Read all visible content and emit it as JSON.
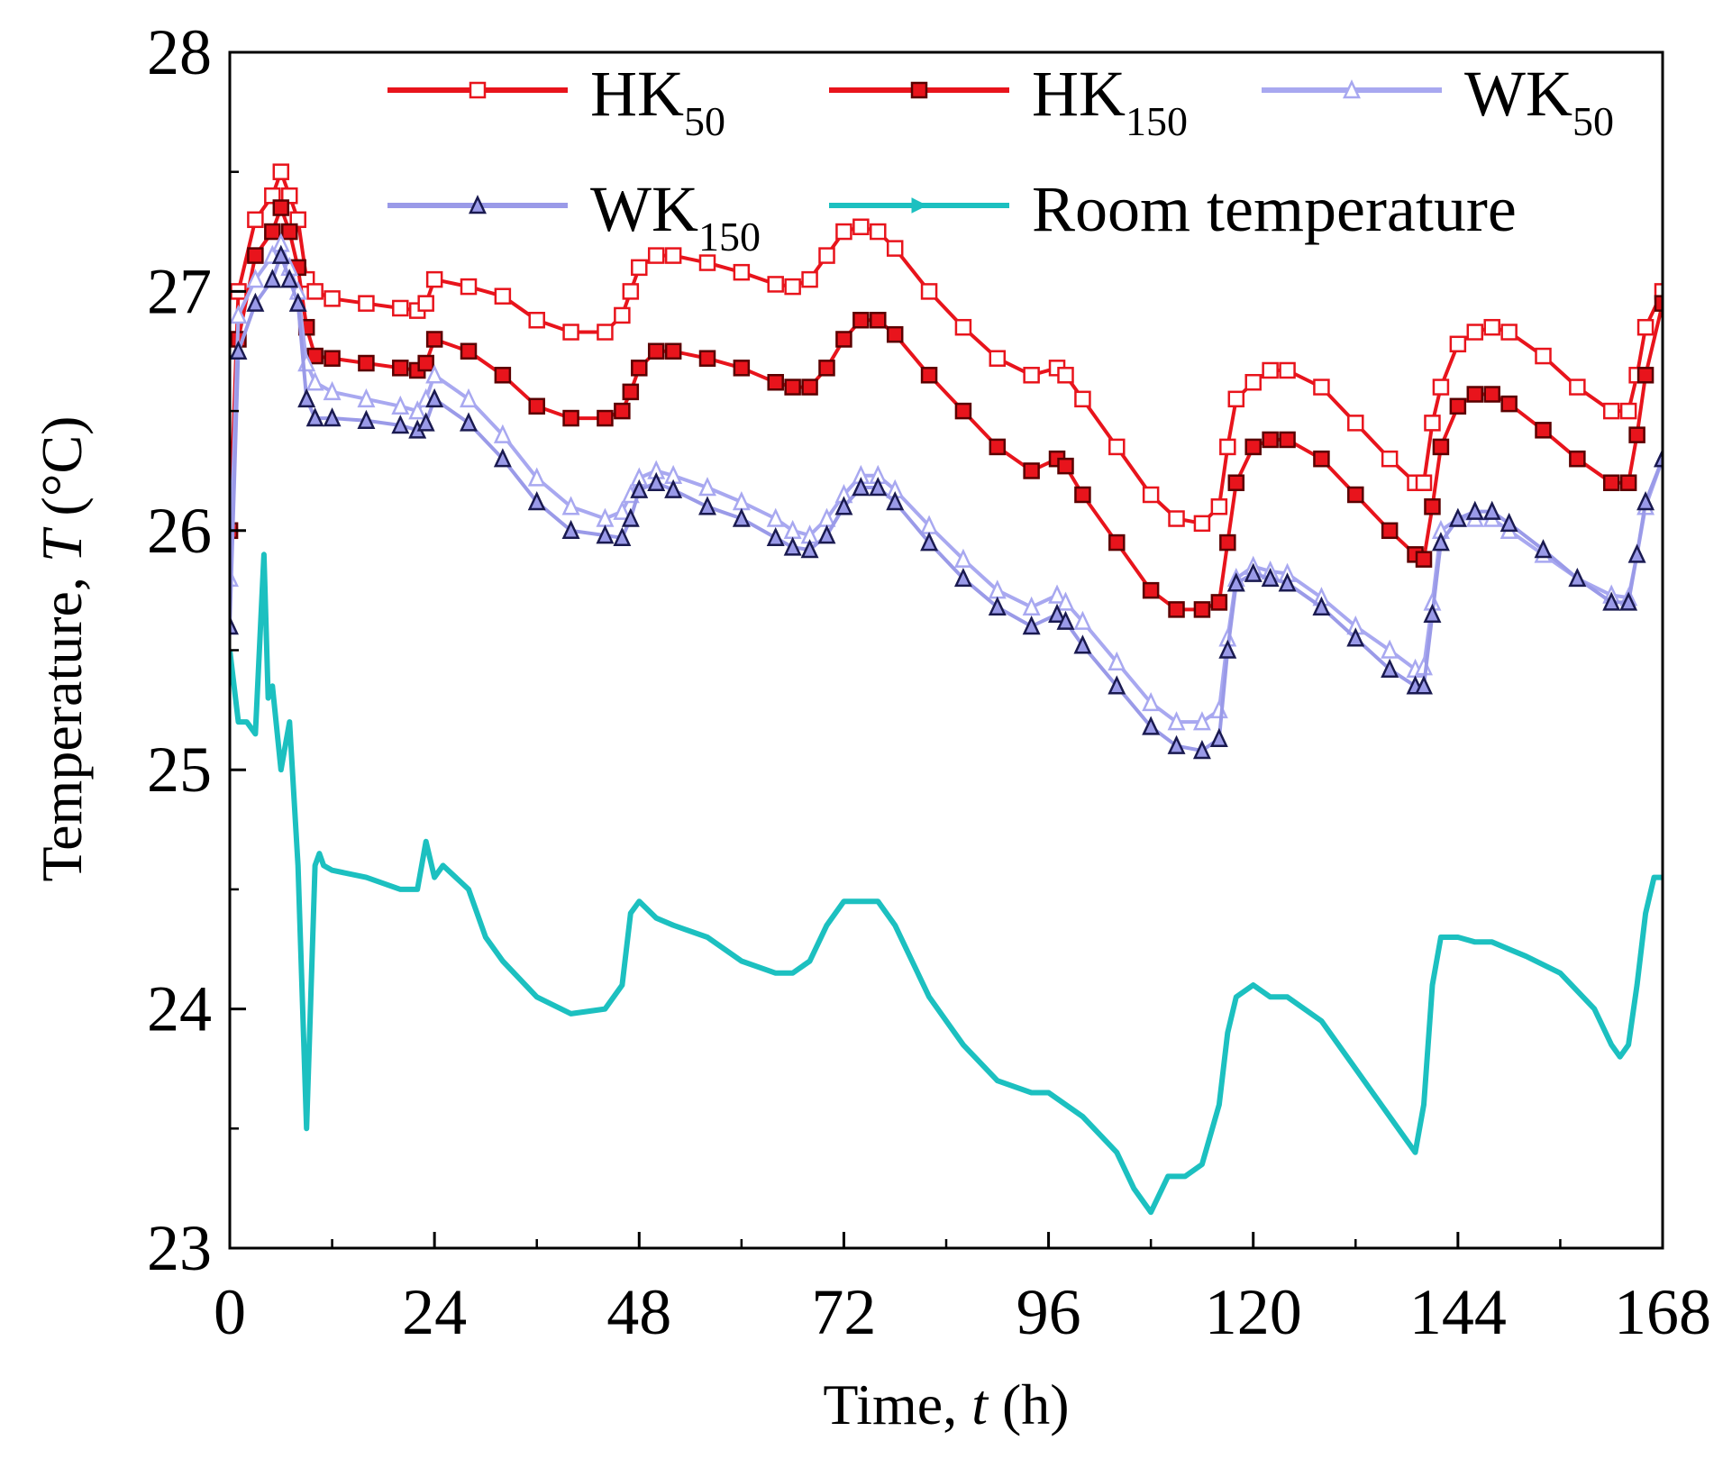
{
  "chart_data": {
    "type": "line",
    "title": "",
    "xlabel": {
      "prefix": "Time, ",
      "var": "t",
      "suffix": " (h)"
    },
    "ylabel": {
      "prefix": "Temperature, ",
      "var": "T",
      "suffix": " (°C)"
    },
    "xlim": [
      0,
      168
    ],
    "ylim": [
      23,
      28
    ],
    "xticks": [
      0,
      24,
      48,
      72,
      96,
      120,
      144,
      168
    ],
    "yticks": [
      23,
      24,
      25,
      26,
      27,
      28
    ],
    "grid": false,
    "legend_position": "top",
    "series": [
      {
        "name": "HK50",
        "base": "HK",
        "sub": "50",
        "color": "#e8141c",
        "marker": "square-open",
        "x": [
          0,
          1,
          3,
          5,
          6,
          7,
          8,
          9,
          10,
          12,
          16,
          20,
          22,
          23,
          24,
          28,
          32,
          36,
          40,
          44,
          46,
          47,
          48,
          50,
          52,
          56,
          60,
          64,
          66,
          68,
          70,
          72,
          74,
          76,
          78,
          82,
          86,
          90,
          94,
          97,
          98,
          100,
          104,
          108,
          111,
          114,
          116,
          117,
          118,
          120,
          122,
          124,
          128,
          132,
          136,
          139,
          140,
          141,
          142,
          144,
          146,
          148,
          150,
          154,
          158,
          162,
          164,
          165,
          166,
          168
        ],
        "y": [
          26.0,
          27.0,
          27.3,
          27.4,
          27.5,
          27.4,
          27.3,
          27.05,
          27.0,
          26.97,
          26.95,
          26.93,
          26.92,
          26.95,
          27.05,
          27.02,
          26.98,
          26.88,
          26.83,
          26.83,
          26.9,
          27.0,
          27.1,
          27.15,
          27.15,
          27.12,
          27.08,
          27.03,
          27.02,
          27.05,
          27.15,
          27.25,
          27.27,
          27.25,
          27.18,
          27.0,
          26.85,
          26.72,
          26.65,
          26.68,
          26.65,
          26.55,
          26.35,
          26.15,
          26.05,
          26.03,
          26.1,
          26.35,
          26.55,
          26.62,
          26.67,
          26.67,
          26.6,
          26.45,
          26.3,
          26.2,
          26.2,
          26.45,
          26.6,
          26.78,
          26.83,
          26.85,
          26.83,
          26.73,
          26.6,
          26.5,
          26.5,
          26.65,
          26.85,
          27.0
        ]
      },
      {
        "name": "HK150",
        "base": "HK",
        "sub": "150",
        "color": "#e8141c",
        "marker": "square-filled",
        "x": [
          0,
          1,
          3,
          5,
          6,
          7,
          8,
          9,
          10,
          12,
          16,
          20,
          22,
          23,
          24,
          28,
          32,
          36,
          40,
          44,
          46,
          47,
          48,
          50,
          52,
          56,
          60,
          64,
          66,
          68,
          70,
          72,
          74,
          76,
          78,
          82,
          86,
          90,
          94,
          97,
          98,
          100,
          104,
          108,
          111,
          114,
          116,
          117,
          118,
          120,
          122,
          124,
          128,
          132,
          136,
          139,
          140,
          141,
          142,
          144,
          146,
          148,
          150,
          154,
          158,
          162,
          164,
          165,
          166,
          168
        ],
        "y": [
          26.0,
          26.8,
          27.15,
          27.25,
          27.35,
          27.25,
          27.1,
          26.85,
          26.73,
          26.72,
          26.7,
          26.68,
          26.67,
          26.7,
          26.8,
          26.75,
          26.65,
          26.52,
          26.47,
          26.47,
          26.5,
          26.58,
          26.68,
          26.75,
          26.75,
          26.72,
          26.68,
          26.62,
          26.6,
          26.6,
          26.68,
          26.8,
          26.88,
          26.88,
          26.82,
          26.65,
          26.5,
          26.35,
          26.25,
          26.3,
          26.27,
          26.15,
          25.95,
          25.75,
          25.67,
          25.67,
          25.7,
          25.95,
          26.2,
          26.35,
          26.38,
          26.38,
          26.3,
          26.15,
          26.0,
          25.9,
          25.88,
          26.1,
          26.35,
          26.52,
          26.57,
          26.57,
          26.53,
          26.42,
          26.3,
          26.2,
          26.2,
          26.4,
          26.65,
          26.95
        ]
      },
      {
        "name": "WK50",
        "base": "WK",
        "sub": "50",
        "color": "#a8a8f0",
        "marker": "triangle-open",
        "x": [
          0,
          1,
          3,
          5,
          6,
          7,
          8,
          9,
          10,
          12,
          16,
          20,
          22,
          23,
          24,
          28,
          32,
          36,
          40,
          44,
          46,
          47,
          48,
          50,
          52,
          56,
          60,
          64,
          66,
          68,
          70,
          72,
          74,
          76,
          78,
          82,
          86,
          90,
          94,
          97,
          98,
          100,
          104,
          108,
          111,
          114,
          116,
          117,
          118,
          120,
          122,
          124,
          128,
          132,
          136,
          139,
          140,
          141,
          142,
          144,
          146,
          148,
          150,
          154,
          158,
          162,
          164,
          165,
          166,
          168
        ],
        "y": [
          25.8,
          26.9,
          27.05,
          27.15,
          27.2,
          27.1,
          27.0,
          26.7,
          26.62,
          26.58,
          26.55,
          26.52,
          26.5,
          26.55,
          26.65,
          26.55,
          26.4,
          26.22,
          26.1,
          26.05,
          26.08,
          26.15,
          26.22,
          26.25,
          26.23,
          26.18,
          26.12,
          26.05,
          26.0,
          25.98,
          26.05,
          26.15,
          26.23,
          26.23,
          26.17,
          26.02,
          25.88,
          25.75,
          25.68,
          25.73,
          25.7,
          25.62,
          25.45,
          25.28,
          25.2,
          25.2,
          25.25,
          25.55,
          25.8,
          25.85,
          25.83,
          25.82,
          25.72,
          25.6,
          25.5,
          25.42,
          25.43,
          25.7,
          26.0,
          26.05,
          26.05,
          26.05,
          26.0,
          25.9,
          25.8,
          25.73,
          25.72,
          25.9,
          26.1,
          26.3
        ]
      },
      {
        "name": "WK150",
        "base": "WK",
        "sub": "150",
        "color": "#9a9ae8",
        "marker": "triangle-filled",
        "x": [
          0,
          1,
          3,
          5,
          6,
          7,
          8,
          9,
          10,
          12,
          16,
          20,
          22,
          23,
          24,
          28,
          32,
          36,
          40,
          44,
          46,
          47,
          48,
          50,
          52,
          56,
          60,
          64,
          66,
          68,
          70,
          72,
          74,
          76,
          78,
          82,
          86,
          90,
          94,
          97,
          98,
          100,
          104,
          108,
          111,
          114,
          116,
          117,
          118,
          120,
          122,
          124,
          128,
          132,
          136,
          139,
          140,
          141,
          142,
          144,
          146,
          148,
          150,
          154,
          158,
          162,
          164,
          165,
          166,
          168
        ],
        "y": [
          25.6,
          26.75,
          26.95,
          27.05,
          27.15,
          27.05,
          26.95,
          26.55,
          26.47,
          26.47,
          26.46,
          26.44,
          26.42,
          26.45,
          26.55,
          26.45,
          26.3,
          26.12,
          26.0,
          25.98,
          25.97,
          26.05,
          26.17,
          26.2,
          26.17,
          26.1,
          26.05,
          25.97,
          25.93,
          25.92,
          25.98,
          26.1,
          26.18,
          26.18,
          26.12,
          25.95,
          25.8,
          25.68,
          25.6,
          25.65,
          25.62,
          25.52,
          25.35,
          25.18,
          25.1,
          25.08,
          25.13,
          25.5,
          25.78,
          25.82,
          25.8,
          25.78,
          25.68,
          25.55,
          25.42,
          25.35,
          25.35,
          25.65,
          25.95,
          26.05,
          26.08,
          26.08,
          26.03,
          25.92,
          25.8,
          25.7,
          25.7,
          25.9,
          26.12,
          26.3
        ]
      },
      {
        "name": "Room temperature",
        "base": "Room temperature",
        "sub": "",
        "color": "#1cc0c0",
        "marker": "right-triangle",
        "x": [
          0,
          1,
          2,
          3,
          4,
          4.5,
          5,
          6,
          7,
          8,
          9,
          10,
          10.5,
          11,
          12,
          16,
          20,
          22,
          23,
          24,
          25,
          28,
          30,
          32,
          36,
          40,
          44,
          46,
          47,
          48,
          50,
          52,
          56,
          60,
          64,
          66,
          68,
          70,
          72,
          74,
          76,
          78,
          82,
          86,
          90,
          94,
          96,
          100,
          104,
          106,
          108,
          110,
          112,
          114,
          116,
          117,
          118,
          120,
          122,
          124,
          128,
          132,
          136,
          138,
          139,
          140,
          141,
          142,
          144,
          146,
          148,
          150,
          152,
          156,
          160,
          162,
          163,
          164,
          165,
          166,
          167,
          168
        ],
        "y": [
          25.5,
          25.2,
          25.2,
          25.15,
          25.9,
          25.3,
          25.35,
          25.0,
          25.2,
          24.6,
          23.5,
          24.6,
          24.65,
          24.6,
          24.58,
          24.55,
          24.5,
          24.5,
          24.7,
          24.55,
          24.6,
          24.5,
          24.3,
          24.2,
          24.05,
          23.98,
          24.0,
          24.1,
          24.4,
          24.45,
          24.38,
          24.35,
          24.3,
          24.2,
          24.15,
          24.15,
          24.2,
          24.35,
          24.45,
          24.45,
          24.45,
          24.35,
          24.05,
          23.85,
          23.7,
          23.65,
          23.65,
          23.55,
          23.4,
          23.25,
          23.15,
          23.3,
          23.3,
          23.35,
          23.6,
          23.9,
          24.05,
          24.1,
          24.05,
          24.05,
          23.95,
          23.75,
          23.55,
          23.45,
          23.4,
          23.6,
          24.1,
          24.3,
          24.3,
          24.28,
          24.28,
          24.25,
          24.22,
          24.15,
          24.0,
          23.85,
          23.8,
          23.85,
          24.1,
          24.4,
          24.55,
          24.55
        ]
      }
    ]
  }
}
